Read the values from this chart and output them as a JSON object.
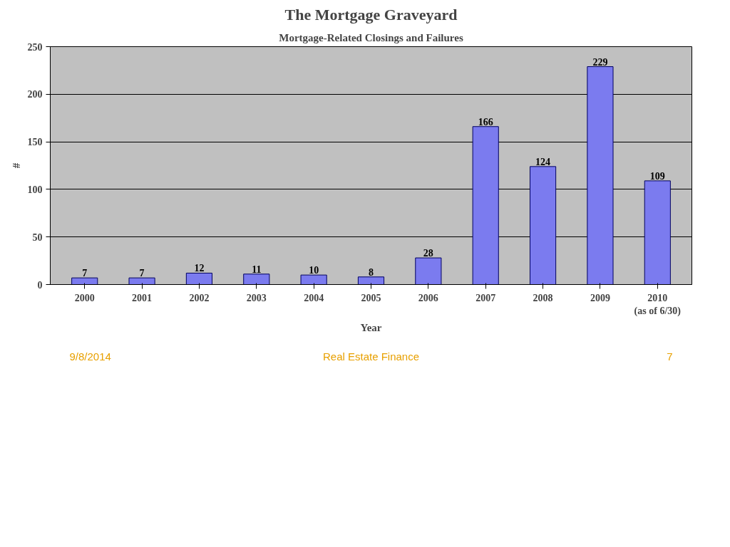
{
  "chart_data": {
    "type": "bar",
    "title": "The Mortgage Graveyard",
    "subtitle": "Mortgage-Related Closings and Failures",
    "xlabel": "Year",
    "ylabel": "#",
    "categories": [
      "2000",
      "2001",
      "2002",
      "2003",
      "2004",
      "2005",
      "2006",
      "2007",
      "2008",
      "2009",
      "2010\n(as of 6/30)"
    ],
    "values": [
      7,
      7,
      12,
      11,
      10,
      8,
      28,
      166,
      124,
      229,
      109
    ],
    "color": "#7b7bef",
    "data_labels": true,
    "ylim": [
      0,
      250
    ],
    "yticks": [
      0,
      50,
      100,
      150,
      200,
      250
    ],
    "grid": "y",
    "annotations": [
      "9/8/2014",
      "Real Estate Finance",
      "7"
    ]
  }
}
